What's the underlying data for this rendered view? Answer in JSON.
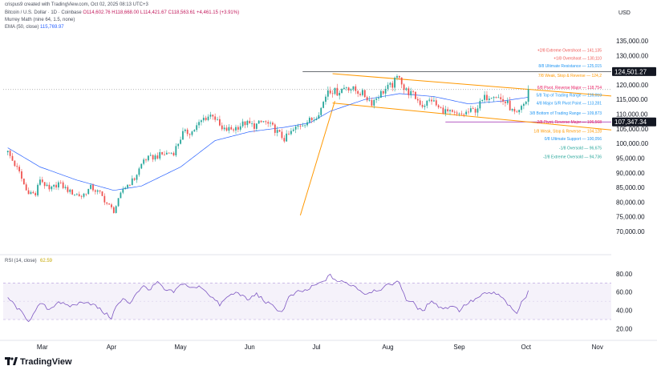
{
  "header": {
    "attribution": "crispus9 created with TradingView.com, Oct 02, 2025 08:13 UTC+3",
    "symbol": "Bitcoin / U.S. Dollar · 1D · Coinbase",
    "ohlc": "O114,602.76  H118,668.00  L114,421.67  C118,563.61  +4,461.15 (+3.91%)",
    "indicator1": "Murrey Math (nine 64, 1.5, none)",
    "indicator2_label": "EMA (50, close)",
    "indicator2_value": "115,769.97",
    "currency": "USD"
  },
  "logo": {
    "text": "TradingView"
  },
  "colors": {
    "up": "#26a69a",
    "down": "#ef5350",
    "ema": "#2962ff",
    "channel": "#ff9800",
    "rsi": "#7e57c2",
    "price_tag_bg": "#131722"
  },
  "chart_data": {
    "type": "candlestick",
    "price_axis": {
      "ylim": [
        67000,
        138000
      ],
      "ticks": [
        70000,
        75000,
        80000,
        85000,
        90000,
        95000,
        100000,
        105000,
        110000,
        115000,
        120000,
        125000,
        130000,
        135000
      ],
      "tick_labels": [
        "70,000.00",
        "75,000.00",
        "80,000.00",
        "85,000.00",
        "90,000.00",
        "95,000.00",
        "100,000.00",
        "105,000.00",
        "110,000.00",
        "115,000.00",
        "120,000.00",
        "125,000.00",
        "130,000.00",
        "135,000.00"
      ]
    },
    "time_axis": {
      "labels": [
        "Mar",
        "Apr",
        "May",
        "Jun",
        "Jul",
        "Aug",
        "Sep",
        "Oct",
        "Nov"
      ],
      "label_days": [
        15,
        45,
        75,
        105,
        134,
        165,
        196,
        225,
        256
      ],
      "xlim": [
        -2,
        262
      ]
    },
    "close_anchors": [
      [
        0,
        97000
      ],
      [
        5,
        90000
      ],
      [
        8,
        84000
      ],
      [
        12,
        82500
      ],
      [
        14,
        88000
      ],
      [
        18,
        84000
      ],
      [
        22,
        86500
      ],
      [
        27,
        83500
      ],
      [
        32,
        82000
      ],
      [
        36,
        85000
      ],
      [
        40,
        83000
      ],
      [
        43,
        79500
      ],
      [
        46,
        77000
      ],
      [
        48,
        80500
      ],
      [
        50,
        84500
      ],
      [
        55,
        88000
      ],
      [
        59,
        94500
      ],
      [
        64,
        95500
      ],
      [
        68,
        96500
      ],
      [
        72,
        97000
      ],
      [
        76,
        103500
      ],
      [
        80,
        104000
      ],
      [
        85,
        108500
      ],
      [
        89,
        110000
      ],
      [
        93,
        104500
      ],
      [
        98,
        105000
      ],
      [
        103,
        107000
      ],
      [
        107,
        106000
      ],
      [
        111,
        107500
      ],
      [
        115,
        105500
      ],
      [
        120,
        101500
      ],
      [
        124,
        104500
      ],
      [
        127,
        106500
      ],
      [
        130,
        107500
      ],
      [
        133,
        108500
      ],
      [
        136,
        112000
      ],
      [
        139,
        118500
      ],
      [
        143,
        117500
      ],
      [
        147,
        119500
      ],
      [
        151,
        118000
      ],
      [
        154,
        117000
      ],
      [
        158,
        114000
      ],
      [
        161,
        116500
      ],
      [
        164,
        118500
      ],
      [
        167,
        120000
      ],
      [
        170,
        123500
      ],
      [
        172,
        118500
      ],
      [
        176,
        116500
      ],
      [
        180,
        113000
      ],
      [
        184,
        115000
      ],
      [
        187,
        112000
      ],
      [
        190,
        111000
      ],
      [
        193,
        110000
      ],
      [
        196,
        109500
      ],
      [
        199,
        110500
      ],
      [
        203,
        111500
      ],
      [
        207,
        115500
      ],
      [
        211,
        117000
      ],
      [
        214,
        115000
      ],
      [
        217,
        113500
      ],
      [
        219,
        111000
      ],
      [
        221,
        109500
      ],
      [
        223,
        112000
      ],
      [
        225,
        114500
      ],
      [
        226,
        118500
      ]
    ],
    "ema50_anchors": [
      [
        0,
        98500
      ],
      [
        14,
        92000
      ],
      [
        30,
        87500
      ],
      [
        46,
        84000
      ],
      [
        58,
        85500
      ],
      [
        75,
        92000
      ],
      [
        90,
        101000
      ],
      [
        105,
        104000
      ],
      [
        120,
        105500
      ],
      [
        131,
        107000
      ],
      [
        140,
        111000
      ],
      [
        155,
        115000
      ],
      [
        170,
        117000
      ],
      [
        185,
        116000
      ],
      [
        200,
        113500
      ],
      [
        215,
        114500
      ],
      [
        226,
        115770
      ]
    ],
    "price_tags": [
      {
        "label": "124,501.27",
        "value": 124501.27
      },
      {
        "label": "107,347.34",
        "value": 107347.34
      }
    ],
    "horizontal_lines": [
      {
        "value": 124501.27,
        "style": "solid",
        "color": "#131722"
      },
      {
        "value": 107347.34,
        "style": "solid",
        "color": "#9c27b0"
      },
      {
        "value": 118400,
        "style": "dotted",
        "color": "#9e9e9e"
      }
    ],
    "channel_lines": [
      {
        "from": [
          141,
          123800
        ],
        "to": [
          262,
          116200
        ]
      },
      {
        "from": [
          141,
          113800
        ],
        "to": [
          262,
          104600
        ]
      }
    ],
    "fib_line": {
      "from": [
        127,
        75500
      ],
      "to": [
        142,
        114500
      ]
    },
    "murrey_labels": [
      {
        "text": "+2/8 Extreme Overshoot — 141,135",
        "value": 131800,
        "color": "#ef5350"
      },
      {
        "text": "+1/8 Overshoot — 130,110",
        "value": 129100,
        "color": "#ef5350"
      },
      {
        "text": "8/8 Ultimate Resistance — 125,015",
        "value": 126500,
        "color": "#2196f3"
      },
      {
        "text": "7/8 Weak, Stop & Reverse — 124,2",
        "value": 123300,
        "color": "#ff9800"
      },
      {
        "text": "6/8 Pivot, Reverse Major — 118,754",
        "value": 119100,
        "color": "#e91e63"
      },
      {
        "text": "5/8 Top of Trading Range — 116,019",
        "value": 116500,
        "color": "#2196f3"
      },
      {
        "text": "4/8 Major S/R Pivot Point — 113,281",
        "value": 113800,
        "color": "#2196f3"
      },
      {
        "text": "3/8 Bottom of Trading Range — 109,873",
        "value": 110400,
        "color": "#2196f3"
      },
      {
        "text": "2/8 Pivot, Reverse Major — 106,568",
        "value": 107350,
        "color": "#e91e63"
      },
      {
        "text": "1/8 Weak, Stop & Reverse — 104,128",
        "value": 104300,
        "color": "#ff9800"
      },
      {
        "text": "0/8 Ultimate Support — 100,056",
        "value": 101700,
        "color": "#2196f3"
      },
      {
        "text": "-1/8 Oversold — 96,675",
        "value": 98600,
        "color": "#26a69a"
      },
      {
        "text": "-2/8 Extreme Oversold — 94,736",
        "value": 95600,
        "color": "#26a69a"
      }
    ],
    "rsi": {
      "label": "RSI (14, close)",
      "value_label": "62.59",
      "ylim": [
        16,
        86
      ],
      "ticks": [
        20,
        40,
        60,
        80
      ],
      "tick_labels": [
        "20.00",
        "40.00",
        "60.00",
        "80.00"
      ],
      "band": [
        30,
        70
      ],
      "mid_line": 50,
      "anchors": [
        [
          0,
          54
        ],
        [
          5,
          40
        ],
        [
          9,
          29
        ],
        [
          12,
          38
        ],
        [
          14,
          48
        ],
        [
          18,
          41
        ],
        [
          22,
          50
        ],
        [
          26,
          44
        ],
        [
          30,
          47
        ],
        [
          34,
          50
        ],
        [
          38,
          45
        ],
        [
          42,
          37
        ],
        [
          45,
          32
        ],
        [
          47,
          44
        ],
        [
          50,
          52
        ],
        [
          53,
          48
        ],
        [
          56,
          60
        ],
        [
          59,
          66
        ],
        [
          62,
          63
        ],
        [
          65,
          71
        ],
        [
          68,
          62
        ],
        [
          72,
          60
        ],
        [
          76,
          70
        ],
        [
          80,
          64
        ],
        [
          84,
          66
        ],
        [
          88,
          56
        ],
        [
          92,
          46
        ],
        [
          96,
          56
        ],
        [
          100,
          60
        ],
        [
          104,
          51
        ],
        [
          108,
          58
        ],
        [
          112,
          49
        ],
        [
          116,
          43
        ],
        [
          119,
          38
        ],
        [
          122,
          54
        ],
        [
          126,
          60
        ],
        [
          130,
          62
        ],
        [
          133,
          67
        ],
        [
          136,
          70
        ],
        [
          138,
          74
        ],
        [
          140,
          78
        ],
        [
          143,
          72
        ],
        [
          147,
          70
        ],
        [
          151,
          66
        ],
        [
          155,
          58
        ],
        [
          159,
          62
        ],
        [
          163,
          64
        ],
        [
          166,
          69
        ],
        [
          170,
          71
        ],
        [
          173,
          52
        ],
        [
          176,
          48
        ],
        [
          180,
          38
        ],
        [
          184,
          52
        ],
        [
          187,
          44
        ],
        [
          190,
          42
        ],
        [
          193,
          46
        ],
        [
          196,
          40
        ],
        [
          199,
          47
        ],
        [
          203,
          52
        ],
        [
          207,
          58
        ],
        [
          211,
          59
        ],
        [
          214,
          55
        ],
        [
          217,
          47
        ],
        [
          219,
          40
        ],
        [
          221,
          37
        ],
        [
          223,
          48
        ],
        [
          225,
          56
        ],
        [
          226,
          63
        ]
      ]
    }
  }
}
